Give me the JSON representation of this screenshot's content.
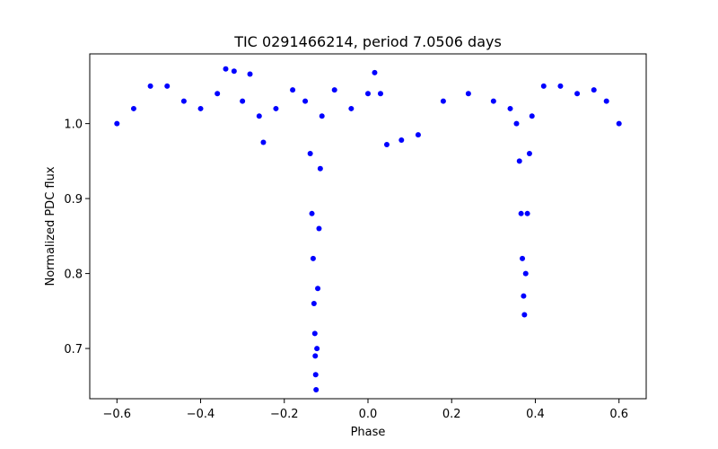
{
  "chart_data": {
    "type": "scatter",
    "title": "TIC 0291466214, period 7.0506 days",
    "xlabel": "Phase",
    "ylabel": "Normalized PDC flux",
    "xlim": [
      -0.665,
      0.665
    ],
    "ylim": [
      0.633,
      1.093
    ],
    "xticks": [
      -0.6,
      -0.4,
      -0.2,
      0.0,
      0.2,
      0.4,
      0.6
    ],
    "xtick_labels": [
      "−0.6",
      "−0.4",
      "−0.2",
      "0.0",
      "0.2",
      "0.4",
      "0.6"
    ],
    "yticks": [
      0.7,
      0.8,
      0.9,
      1.0
    ],
    "ytick_labels": [
      "0.7",
      "0.8",
      "0.9",
      "1.0"
    ],
    "grid": false,
    "legend": "none",
    "marker_color": "#0000ff",
    "series": [
      {
        "points": [
          [
            -0.6,
            1.0
          ],
          [
            -0.56,
            1.02
          ],
          [
            -0.52,
            1.05
          ],
          [
            -0.48,
            1.05
          ],
          [
            -0.44,
            1.03
          ],
          [
            -0.4,
            1.02
          ],
          [
            -0.36,
            1.04
          ],
          [
            -0.34,
            1.073
          ],
          [
            -0.32,
            1.07
          ],
          [
            -0.3,
            1.03
          ],
          [
            -0.282,
            1.066
          ],
          [
            -0.26,
            1.01
          ],
          [
            -0.25,
            0.975
          ],
          [
            -0.22,
            1.02
          ],
          [
            -0.18,
            1.045
          ],
          [
            -0.15,
            1.03
          ],
          [
            -0.138,
            0.96
          ],
          [
            -0.134,
            0.88
          ],
          [
            -0.131,
            0.82
          ],
          [
            -0.129,
            0.76
          ],
          [
            -0.127,
            0.72
          ],
          [
            -0.126,
            0.69
          ],
          [
            -0.125,
            0.665
          ],
          [
            -0.124,
            0.645
          ],
          [
            -0.122,
            0.7
          ],
          [
            -0.12,
            0.78
          ],
          [
            -0.117,
            0.86
          ],
          [
            -0.114,
            0.94
          ],
          [
            -0.11,
            1.01
          ],
          [
            -0.08,
            1.045
          ],
          [
            -0.04,
            1.02
          ],
          [
            0.0,
            1.04
          ],
          [
            0.016,
            1.068
          ],
          [
            0.03,
            1.04
          ],
          [
            0.045,
            0.972
          ],
          [
            0.08,
            0.978
          ],
          [
            0.12,
            0.985
          ],
          [
            0.18,
            1.03
          ],
          [
            0.24,
            1.04
          ],
          [
            0.3,
            1.03
          ],
          [
            0.34,
            1.02
          ],
          [
            0.355,
            1.0
          ],
          [
            0.362,
            0.95
          ],
          [
            0.366,
            0.88
          ],
          [
            0.369,
            0.82
          ],
          [
            0.372,
            0.77
          ],
          [
            0.374,
            0.745
          ],
          [
            0.377,
            0.8
          ],
          [
            0.381,
            0.88
          ],
          [
            0.386,
            0.96
          ],
          [
            0.392,
            1.01
          ],
          [
            0.42,
            1.05
          ],
          [
            0.46,
            1.05
          ],
          [
            0.5,
            1.04
          ],
          [
            0.54,
            1.045
          ],
          [
            0.57,
            1.03
          ],
          [
            0.6,
            1.0
          ]
        ]
      }
    ]
  }
}
